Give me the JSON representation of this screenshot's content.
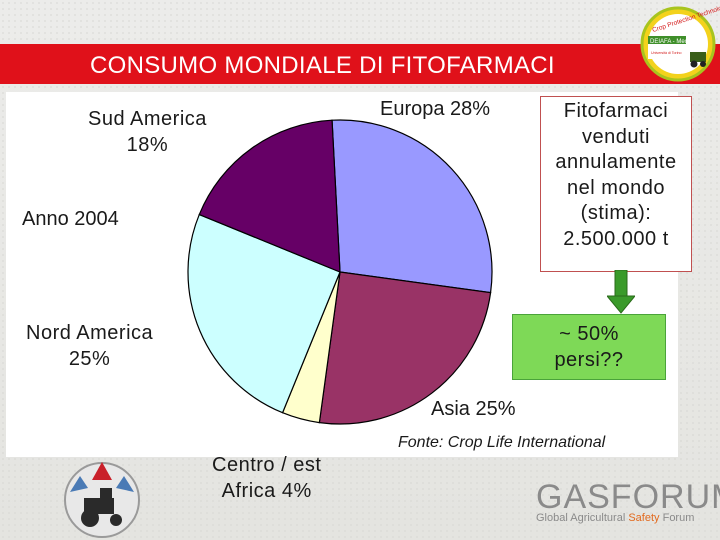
{
  "header": {
    "title": "CONSUMO MONDIALE DI FITOFARMACI",
    "logo_lines": [
      "Crop Protection Technology",
      "DEIAFA - Meccanica",
      "Università di Torino"
    ]
  },
  "chart_data": {
    "type": "pie",
    "title": "",
    "year_label": "Anno 2004",
    "start_angle_deg": -93,
    "slices": [
      {
        "name": "Europa",
        "value": 28,
        "label": "Europa 28%",
        "color": "#9999ff"
      },
      {
        "name": "Asia",
        "value": 25,
        "label": "Asia 25%",
        "color": "#993366"
      },
      {
        "name": "Centro / est Africa",
        "value": 4,
        "label_lines": [
          "Centro / est",
          "Africa 4%"
        ],
        "color": "#ffffcc"
      },
      {
        "name": "Nord America",
        "value": 25,
        "label_lines": [
          "Nord America",
          "25%"
        ],
        "color": "#ccffff"
      },
      {
        "name": "Sud America",
        "value": 18,
        "label_lines": [
          "Sud America",
          "18%"
        ],
        "color": "#660066"
      }
    ]
  },
  "note": {
    "lines": [
      "Fitofarmaci",
      "venduti",
      "annulamente",
      "nel mondo",
      "(stima):",
      "2.500.000 t"
    ]
  },
  "loss": {
    "lines": [
      "~ 50%",
      "persi??"
    ],
    "color": "#7ed957"
  },
  "source": "Fonte: Crop Life International",
  "footer": {
    "gasforum_name": "GASFORUM",
    "gasforum_tag_a": "Global Agricultural",
    "gasforum_tag_b": "Safety",
    "gasforum_tag_c": "Forum"
  }
}
